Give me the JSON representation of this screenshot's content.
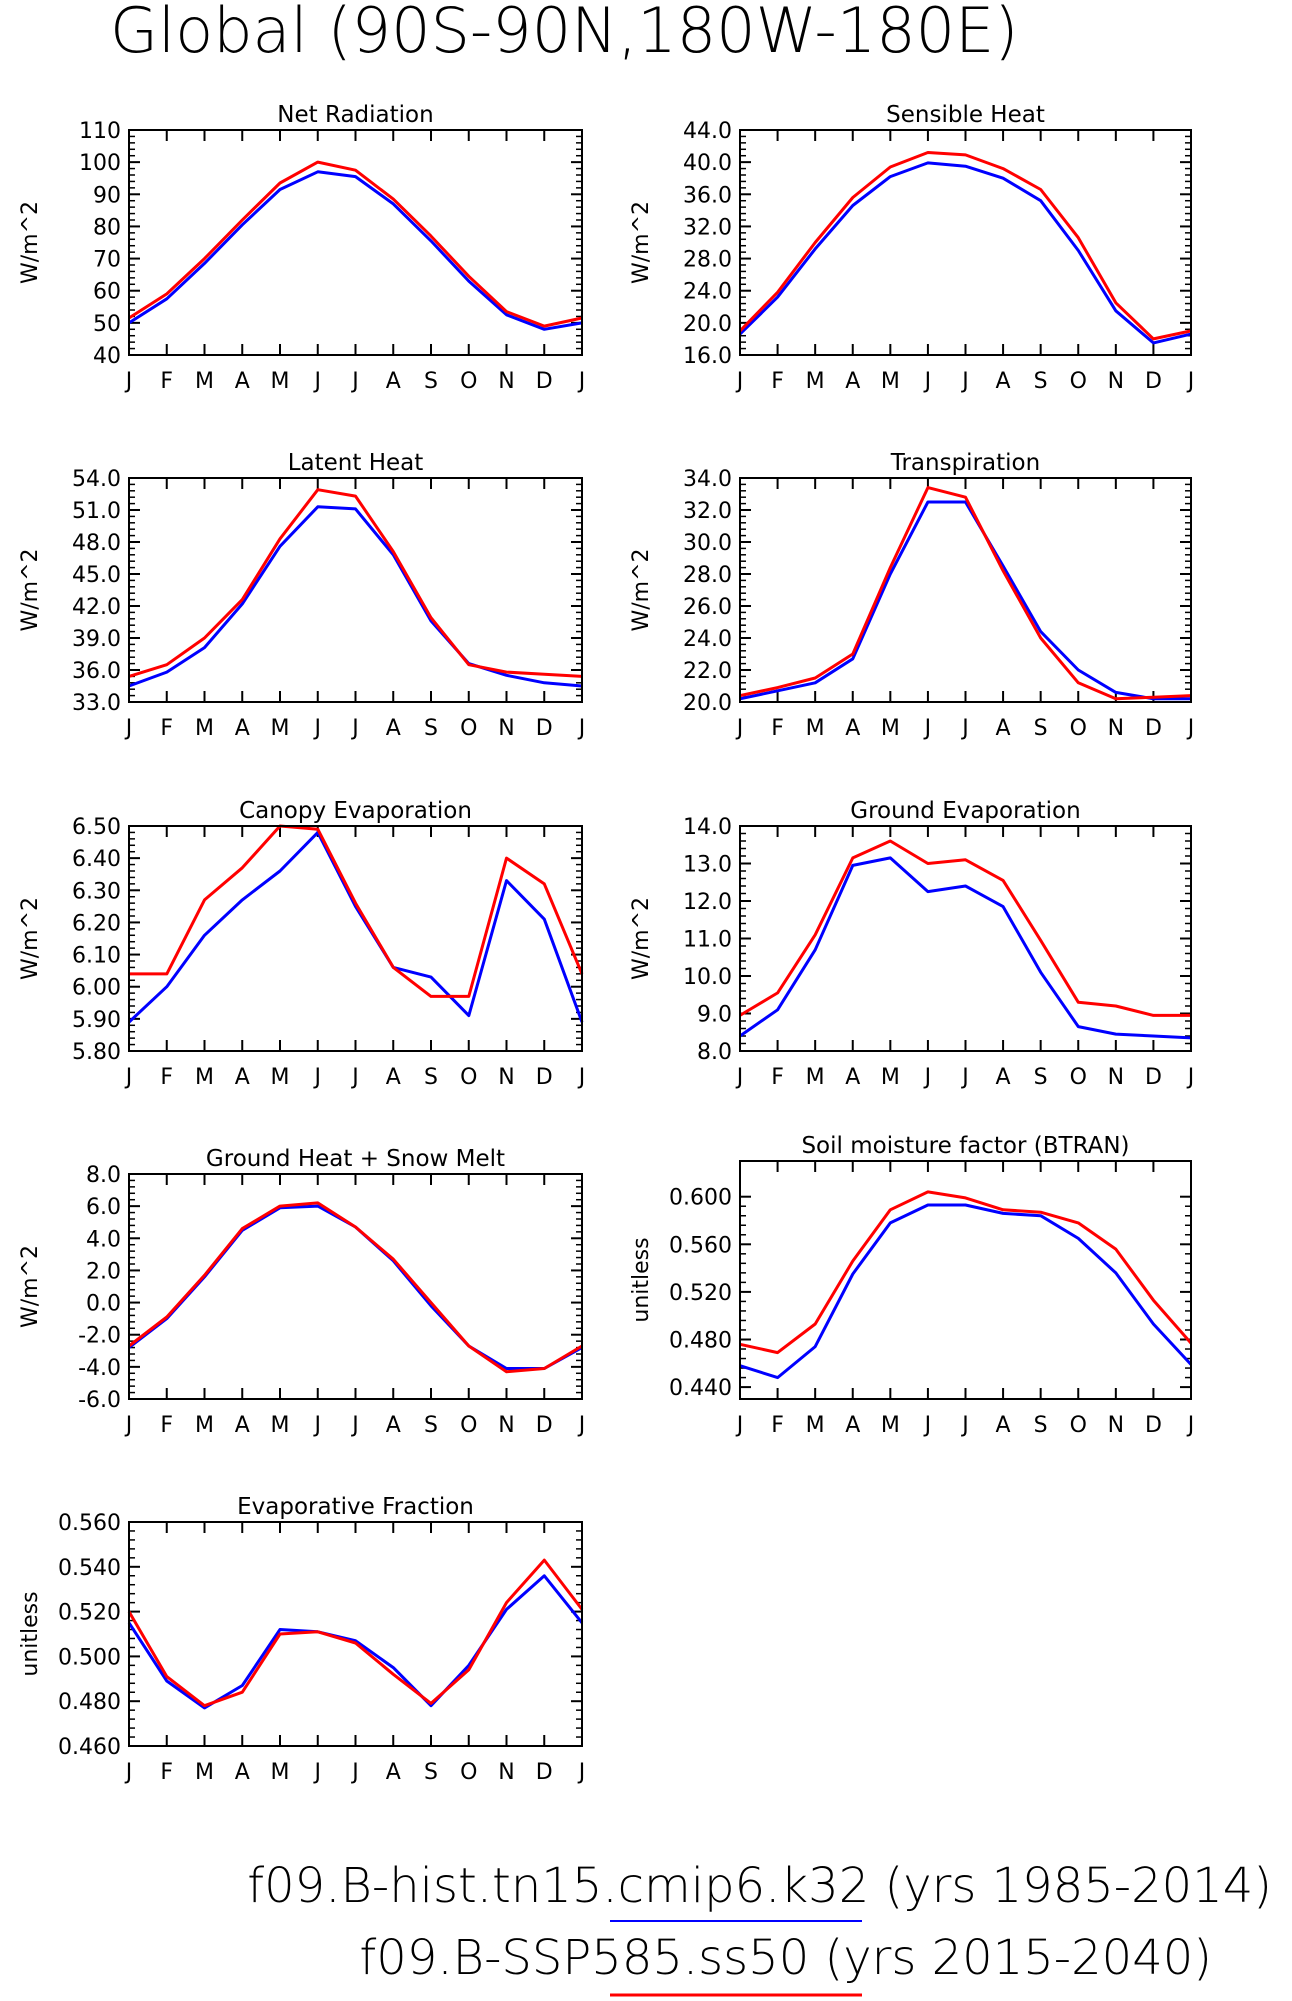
{
  "figure": {
    "title": "Global (90S-90N,180W-180E)",
    "legend": [
      {
        "text": "f09.B-hist.tn15.cmip6.k32 (yrs 1985-2014)",
        "color": "#0000ff"
      },
      {
        "text": "f09.B-SSP585.ss50 (yrs 2015-2040)",
        "color": "#ff0000"
      }
    ],
    "series_colors": {
      "blue": "#0000ff",
      "red": "#ff0000"
    }
  },
  "chart_data": [
    {
      "type": "line",
      "title": "Net Radiation",
      "ylabel": "W/m^2",
      "x": [
        "J",
        "F",
        "M",
        "A",
        "M",
        "J",
        "J",
        "A",
        "S",
        "O",
        "N",
        "D",
        "J"
      ],
      "ylim": [
        40,
        110
      ],
      "yticks": [
        "40",
        "50",
        "60",
        "70",
        "80",
        "90",
        "100",
        "110"
      ],
      "series": [
        {
          "color": "#0000ff",
          "values": [
            50.0,
            57.5,
            68.5,
            80.5,
            91.5,
            97.0,
            95.5,
            87.0,
            75.5,
            63.0,
            52.5,
            48.0,
            50.0
          ]
        },
        {
          "color": "#ff0000",
          "values": [
            51.5,
            59.0,
            70.0,
            82.0,
            93.5,
            100.0,
            97.5,
            88.5,
            77.0,
            64.5,
            53.5,
            49.0,
            51.5
          ]
        }
      ]
    },
    {
      "type": "line",
      "title": "Sensible Heat",
      "ylabel": "W/m^2",
      "x": [
        "J",
        "F",
        "M",
        "A",
        "M",
        "J",
        "J",
        "A",
        "S",
        "O",
        "N",
        "D",
        "J"
      ],
      "ylim": [
        16,
        44
      ],
      "yticks": [
        "16.0",
        "20.0",
        "24.0",
        "28.0",
        "32.0",
        "36.0",
        "40.0",
        "44.0"
      ],
      "series": [
        {
          "color": "#0000ff",
          "values": [
            18.6,
            23.2,
            29.2,
            34.6,
            38.2,
            39.9,
            39.5,
            38.0,
            35.2,
            29.0,
            21.5,
            17.5,
            18.6
          ]
        },
        {
          "color": "#ff0000",
          "values": [
            19.0,
            23.8,
            30.0,
            35.6,
            39.4,
            41.2,
            40.9,
            39.2,
            36.6,
            30.6,
            22.5,
            18.0,
            19.0
          ]
        }
      ]
    },
    {
      "type": "line",
      "title": "Latent Heat",
      "ylabel": "W/m^2",
      "x": [
        "J",
        "F",
        "M",
        "A",
        "M",
        "J",
        "J",
        "A",
        "S",
        "O",
        "N",
        "D",
        "J"
      ],
      "ylim": [
        33,
        54
      ],
      "yticks": [
        "33.0",
        "36.0",
        "39.0",
        "42.0",
        "45.0",
        "48.0",
        "51.0",
        "54.0"
      ],
      "series": [
        {
          "color": "#0000ff",
          "values": [
            34.5,
            35.8,
            38.1,
            42.2,
            47.6,
            51.3,
            51.1,
            46.8,
            40.6,
            36.6,
            35.5,
            34.8,
            34.5
          ]
        },
        {
          "color": "#ff0000",
          "values": [
            35.4,
            36.5,
            39.0,
            42.6,
            48.3,
            52.9,
            52.3,
            47.1,
            40.9,
            36.5,
            35.8,
            35.6,
            35.4
          ]
        }
      ]
    },
    {
      "type": "line",
      "title": "Transpiration",
      "ylabel": "W/m^2",
      "x": [
        "J",
        "F",
        "M",
        "A",
        "M",
        "J",
        "J",
        "A",
        "S",
        "O",
        "N",
        "D",
        "J"
      ],
      "ylim": [
        20,
        34
      ],
      "yticks": [
        "20.0",
        "22.0",
        "24.0",
        "26.0",
        "28.0",
        "30.0",
        "32.0",
        "34.0"
      ],
      "series": [
        {
          "color": "#0000ff",
          "values": [
            20.2,
            20.7,
            21.2,
            22.7,
            28.0,
            32.5,
            32.5,
            28.5,
            24.4,
            22.0,
            20.6,
            20.2,
            20.2
          ]
        },
        {
          "color": "#ff0000",
          "values": [
            20.4,
            20.9,
            21.5,
            23.0,
            28.4,
            33.4,
            32.8,
            28.2,
            24.0,
            21.2,
            20.2,
            20.3,
            20.4
          ]
        }
      ]
    },
    {
      "type": "line",
      "title": "Canopy Evaporation",
      "ylabel": "W/m^2",
      "x": [
        "J",
        "F",
        "M",
        "A",
        "M",
        "J",
        "J",
        "A",
        "S",
        "O",
        "N",
        "D",
        "J"
      ],
      "ylim": [
        5.8,
        6.5
      ],
      "yticks": [
        "5.80",
        "5.90",
        "6.00",
        "6.10",
        "6.20",
        "6.30",
        "6.40",
        "6.50"
      ],
      "series": [
        {
          "color": "#0000ff",
          "values": [
            5.89,
            6.0,
            6.16,
            6.27,
            6.36,
            6.48,
            6.25,
            6.06,
            6.03,
            5.91,
            6.33,
            6.21,
            5.89
          ]
        },
        {
          "color": "#ff0000",
          "values": [
            6.04,
            6.04,
            6.27,
            6.37,
            6.5,
            6.49,
            6.26,
            6.06,
            5.97,
            5.97,
            6.4,
            6.32,
            6.04
          ]
        }
      ]
    },
    {
      "type": "line",
      "title": "Ground Evaporation",
      "ylabel": "W/m^2",
      "x": [
        "J",
        "F",
        "M",
        "A",
        "M",
        "J",
        "J",
        "A",
        "S",
        "O",
        "N",
        "D",
        "J"
      ],
      "ylim": [
        8,
        14
      ],
      "yticks": [
        "8.0",
        "9.0",
        "10.0",
        "11.0",
        "12.0",
        "13.0",
        "14.0"
      ],
      "series": [
        {
          "color": "#0000ff",
          "values": [
            8.4,
            9.1,
            10.7,
            12.95,
            13.15,
            12.25,
            12.4,
            11.85,
            10.1,
            8.65,
            8.45,
            8.4,
            8.35
          ]
        },
        {
          "color": "#ff0000",
          "values": [
            8.95,
            9.55,
            11.1,
            13.15,
            13.6,
            13.0,
            13.1,
            12.55,
            10.95,
            9.3,
            9.2,
            8.95,
            8.95
          ]
        }
      ]
    },
    {
      "type": "line",
      "title": "Ground Heat + Snow Melt",
      "ylabel": "W/m^2",
      "x": [
        "J",
        "F",
        "M",
        "A",
        "M",
        "J",
        "J",
        "A",
        "S",
        "O",
        "N",
        "D",
        "J"
      ],
      "ylim": [
        -6,
        8
      ],
      "yticks": [
        "-6.0",
        "-4.0",
        "-2.0",
        "0.0",
        "2.0",
        "4.0",
        "6.0",
        "8.0"
      ],
      "series": [
        {
          "color": "#0000ff",
          "values": [
            -2.8,
            -1.0,
            1.6,
            4.5,
            5.9,
            6.0,
            4.7,
            2.6,
            -0.2,
            -2.7,
            -4.1,
            -4.1,
            -2.8
          ]
        },
        {
          "color": "#ff0000",
          "values": [
            -2.7,
            -0.9,
            1.7,
            4.6,
            6.0,
            6.2,
            4.7,
            2.7,
            0.0,
            -2.7,
            -4.3,
            -4.1,
            -2.7
          ]
        }
      ]
    },
    {
      "type": "line",
      "title": "Soil moisture factor (BTRAN)",
      "ylabel": "unitless",
      "x": [
        "J",
        "F",
        "M",
        "A",
        "M",
        "J",
        "J",
        "A",
        "S",
        "O",
        "N",
        "D",
        "J"
      ],
      "ylim": [
        0.43,
        0.63
      ],
      "yticks": [
        "0.440",
        "0.480",
        "0.520",
        "0.560",
        "0.600"
      ],
      "series": [
        {
          "color": "#0000ff",
          "values": [
            0.458,
            0.448,
            0.474,
            0.535,
            0.578,
            0.593,
            0.593,
            0.586,
            0.584,
            0.565,
            0.536,
            0.493,
            0.459
          ]
        },
        {
          "color": "#ff0000",
          "values": [
            0.476,
            0.469,
            0.493,
            0.546,
            0.589,
            0.604,
            0.599,
            0.589,
            0.587,
            0.578,
            0.556,
            0.513,
            0.477
          ]
        }
      ]
    },
    {
      "type": "line",
      "title": "Evaporative Fraction",
      "ylabel": "unitless",
      "x": [
        "J",
        "F",
        "M",
        "A",
        "M",
        "J",
        "J",
        "A",
        "S",
        "O",
        "N",
        "D",
        "J"
      ],
      "ylim": [
        0.46,
        0.56
      ],
      "yticks": [
        "0.460",
        "0.480",
        "0.500",
        "0.520",
        "0.540",
        "0.560"
      ],
      "series": [
        {
          "color": "#0000ff",
          "values": [
            0.515,
            0.489,
            0.477,
            0.487,
            0.512,
            0.511,
            0.507,
            0.495,
            0.478,
            0.496,
            0.521,
            0.536,
            0.515
          ]
        },
        {
          "color": "#ff0000",
          "values": [
            0.52,
            0.491,
            0.478,
            0.484,
            0.51,
            0.511,
            0.506,
            0.492,
            0.479,
            0.494,
            0.524,
            0.543,
            0.521
          ]
        }
      ]
    }
  ]
}
